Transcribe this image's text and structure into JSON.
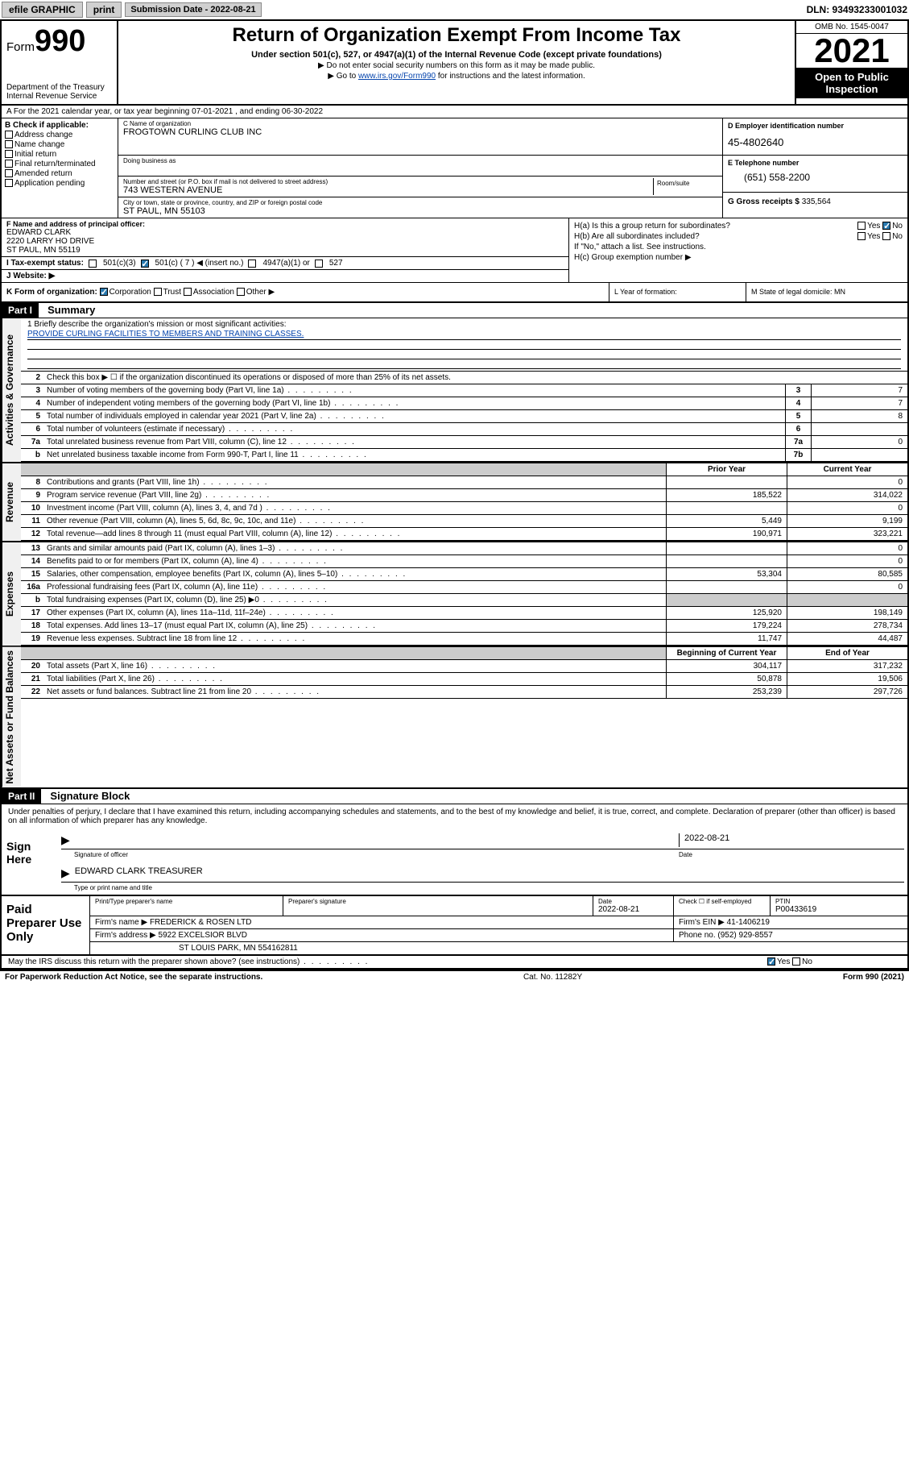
{
  "topbar": {
    "efile": "efile GRAPHIC",
    "print": "print",
    "submission_label": "Submission Date - 2022-08-21",
    "dln": "DLN: 93493233001032"
  },
  "header": {
    "form_prefix": "Form",
    "form_number": "990",
    "dept": "Department of the Treasury",
    "irs": "Internal Revenue Service",
    "title": "Return of Organization Exempt From Income Tax",
    "subtitle": "Under section 501(c), 527, or 4947(a)(1) of the Internal Revenue Code (except private foundations)",
    "note1": "▶ Do not enter social security numbers on this form as it may be made public.",
    "note2_pre": "▶ Go to ",
    "note2_link": "www.irs.gov/Form990",
    "note2_post": " for instructions and the latest information.",
    "omb": "OMB No. 1545-0047",
    "year": "2021",
    "open": "Open to Public Inspection"
  },
  "row_a": "A For the 2021 calendar year, or tax year beginning 07-01-2021   , and ending 06-30-2022",
  "section_b": {
    "label": "B Check if applicable:",
    "opts": [
      "Address change",
      "Name change",
      "Initial return",
      "Final return/terminated",
      "Amended return",
      "Application pending"
    ]
  },
  "section_c": {
    "name_label": "C Name of organization",
    "name": "FROGTOWN CURLING CLUB INC",
    "dba_label": "Doing business as",
    "street_label": "Number and street (or P.O. box if mail is not delivered to street address)",
    "street": "743 WESTERN AVENUE",
    "suite_label": "Room/suite",
    "city_label": "City or town, state or province, country, and ZIP or foreign postal code",
    "city": "ST PAUL, MN  55103"
  },
  "section_d": {
    "ein_label": "D Employer identification number",
    "ein": "45-4802640",
    "phone_label": "E Telephone number",
    "phone": "(651) 558-2200",
    "gross_label": "G Gross receipts $",
    "gross": "335,564"
  },
  "section_f": {
    "label": "F  Name and address of principal officer:",
    "name": "EDWARD CLARK",
    "addr1": "2220 LARRY HO DRIVE",
    "addr2": "ST PAUL, MN  55119"
  },
  "section_h": {
    "ha": "H(a)  Is this a group return for subordinates?",
    "hb": "H(b)  Are all subordinates included?",
    "hb_note": "If \"No,\" attach a list. See instructions.",
    "hc": "H(c)  Group exemption number ▶",
    "yes": "Yes",
    "no": "No"
  },
  "section_i": {
    "label": "I   Tax-exempt status:",
    "o1": "501(c)(3)",
    "o2": "501(c) ( 7 ) ◀ (insert no.)",
    "o3": "4947(a)(1) or",
    "o4": "527"
  },
  "section_j": {
    "label": "J   Website: ▶"
  },
  "section_k": {
    "label": "K Form of organization:",
    "opts": [
      "Corporation",
      "Trust",
      "Association",
      "Other ▶"
    ]
  },
  "section_l": {
    "label": "L Year of formation:"
  },
  "section_m": {
    "label": "M State of legal domicile: MN"
  },
  "part1": {
    "hdr": "Part I",
    "title": "Summary",
    "mission_label": "1   Briefly describe the organization's mission or most significant activities:",
    "mission": "PROVIDE CURLING FACILITIES TO MEMBERS AND TRAINING CLASSES.",
    "line2": "Check this box ▶ ☐  if the organization discontinued its operations or disposed of more than 25% of its net assets.",
    "vtab_ag": "Activities & Governance",
    "vtab_rev": "Revenue",
    "vtab_exp": "Expenses",
    "vtab_na": "Net Assets or Fund Balances",
    "rows_ag": [
      {
        "n": "3",
        "d": "Number of voting members of the governing body (Part VI, line 1a)",
        "box": "3",
        "v": "7"
      },
      {
        "n": "4",
        "d": "Number of independent voting members of the governing body (Part VI, line 1b)",
        "box": "4",
        "v": "7"
      },
      {
        "n": "5",
        "d": "Total number of individuals employed in calendar year 2021 (Part V, line 2a)",
        "box": "5",
        "v": "8"
      },
      {
        "n": "6",
        "d": "Total number of volunteers (estimate if necessary)",
        "box": "6",
        "v": ""
      },
      {
        "n": "7a",
        "d": "Total unrelated business revenue from Part VIII, column (C), line 12",
        "box": "7a",
        "v": "0"
      },
      {
        "n": "b",
        "d": "Net unrelated business taxable income from Form 990-T, Part I, line 11",
        "box": "7b",
        "v": ""
      }
    ],
    "hdr_prior": "Prior Year",
    "hdr_curr": "Current Year",
    "rows_rev": [
      {
        "n": "8",
        "d": "Contributions and grants (Part VIII, line 1h)",
        "p": "",
        "c": "0"
      },
      {
        "n": "9",
        "d": "Program service revenue (Part VIII, line 2g)",
        "p": "185,522",
        "c": "314,022"
      },
      {
        "n": "10",
        "d": "Investment income (Part VIII, column (A), lines 3, 4, and 7d )",
        "p": "",
        "c": "0"
      },
      {
        "n": "11",
        "d": "Other revenue (Part VIII, column (A), lines 5, 6d, 8c, 9c, 10c, and 11e)",
        "p": "5,449",
        "c": "9,199"
      },
      {
        "n": "12",
        "d": "Total revenue—add lines 8 through 11 (must equal Part VIII, column (A), line 12)",
        "p": "190,971",
        "c": "323,221"
      }
    ],
    "rows_exp": [
      {
        "n": "13",
        "d": "Grants and similar amounts paid (Part IX, column (A), lines 1–3)",
        "p": "",
        "c": "0"
      },
      {
        "n": "14",
        "d": "Benefits paid to or for members (Part IX, column (A), line 4)",
        "p": "",
        "c": "0"
      },
      {
        "n": "15",
        "d": "Salaries, other compensation, employee benefits (Part IX, column (A), lines 5–10)",
        "p": "53,304",
        "c": "80,585"
      },
      {
        "n": "16a",
        "d": "Professional fundraising fees (Part IX, column (A), line 11e)",
        "p": "",
        "c": "0"
      },
      {
        "n": "b",
        "d": "Total fundraising expenses (Part IX, column (D), line 25) ▶0",
        "p": "grey",
        "c": "grey"
      },
      {
        "n": "17",
        "d": "Other expenses (Part IX, column (A), lines 11a–11d, 11f–24e)",
        "p": "125,920",
        "c": "198,149"
      },
      {
        "n": "18",
        "d": "Total expenses. Add lines 13–17 (must equal Part IX, column (A), line 25)",
        "p": "179,224",
        "c": "278,734"
      },
      {
        "n": "19",
        "d": "Revenue less expenses. Subtract line 18 from line 12",
        "p": "11,747",
        "c": "44,487"
      }
    ],
    "hdr_beg": "Beginning of Current Year",
    "hdr_end": "End of Year",
    "rows_na": [
      {
        "n": "20",
        "d": "Total assets (Part X, line 16)",
        "p": "304,117",
        "c": "317,232"
      },
      {
        "n": "21",
        "d": "Total liabilities (Part X, line 26)",
        "p": "50,878",
        "c": "19,506"
      },
      {
        "n": "22",
        "d": "Net assets or fund balances. Subtract line 21 from line 20",
        "p": "253,239",
        "c": "297,726"
      }
    ]
  },
  "part2": {
    "hdr": "Part II",
    "title": "Signature Block",
    "decl": "Under penalties of perjury, I declare that I have examined this return, including accompanying schedules and statements, and to the best of my knowledge and belief, it is true, correct, and complete. Declaration of preparer (other than officer) is based on all information of which preparer has any knowledge."
  },
  "sign": {
    "label": "Sign Here",
    "sig_label": "Signature of officer",
    "date": "2022-08-21",
    "date_label": "Date",
    "name": "EDWARD CLARK  TREASURER",
    "name_label": "Type or print name and title"
  },
  "preparer": {
    "label": "Paid Preparer Use Only",
    "h_name": "Print/Type preparer's name",
    "h_sig": "Preparer's signature",
    "h_date": "Date",
    "date": "2022-08-21",
    "h_check": "Check ☐ if self-employed",
    "h_ptin": "PTIN",
    "ptin": "P00433619",
    "firm_label": "Firm's name      ▶",
    "firm": "FREDERICK & ROSEN LTD",
    "ein_label": "Firm's EIN ▶",
    "ein": "41-1406219",
    "addr_label": "Firm's address ▶",
    "addr1": "5922 EXCELSIOR BLVD",
    "addr2": "ST LOUIS PARK, MN  554162811",
    "phone_label": "Phone no.",
    "phone": "(952) 929-8557"
  },
  "discuss": {
    "q": "May the IRS discuss this return with the preparer shown above? (see instructions)",
    "yes": "Yes",
    "no": "No"
  },
  "footer": {
    "l": "For Paperwork Reduction Act Notice, see the separate instructions.",
    "m": "Cat. No. 11282Y",
    "r": "Form 990 (2021)"
  }
}
